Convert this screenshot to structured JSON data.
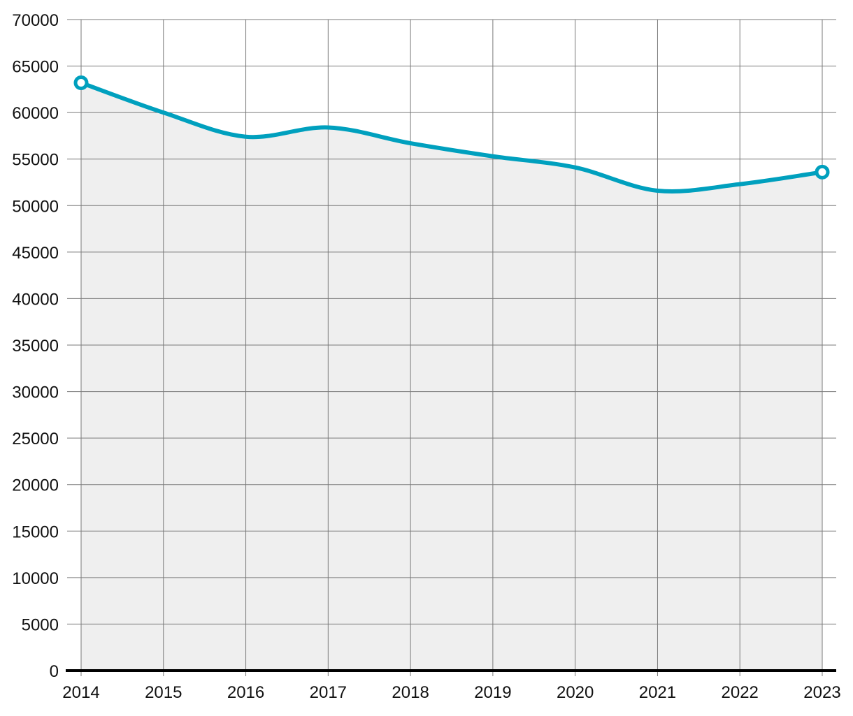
{
  "chart_data": {
    "type": "area",
    "title": "",
    "xlabel": "",
    "ylabel": "",
    "x": [
      2014,
      2015,
      2016,
      2017,
      2018,
      2019,
      2020,
      2021,
      2022,
      2023
    ],
    "xticks": [
      "2014",
      "2015",
      "2016",
      "2017",
      "2018",
      "2019",
      "2020",
      "2021",
      "2022",
      "2023"
    ],
    "series": [
      {
        "values": [
          63200,
          60000,
          57400,
          58400,
          56700,
          55300,
          54100,
          51600,
          52300,
          53600
        ]
      }
    ],
    "ylim": [
      0,
      70000
    ],
    "yticks": [
      "0",
      "5000",
      "10000",
      "15000",
      "20000",
      "25000",
      "30000",
      "35000",
      "40000",
      "45000",
      "50000",
      "55000",
      "60000",
      "65000",
      "70000"
    ],
    "grid": true,
    "legend": "none",
    "endpoint_markers": true,
    "colors": {
      "line": "#00a0be",
      "fill": "#efefef",
      "grid": "#7a7a7a",
      "baseline": "#000000",
      "marker_fill": "#ffffff"
    }
  }
}
